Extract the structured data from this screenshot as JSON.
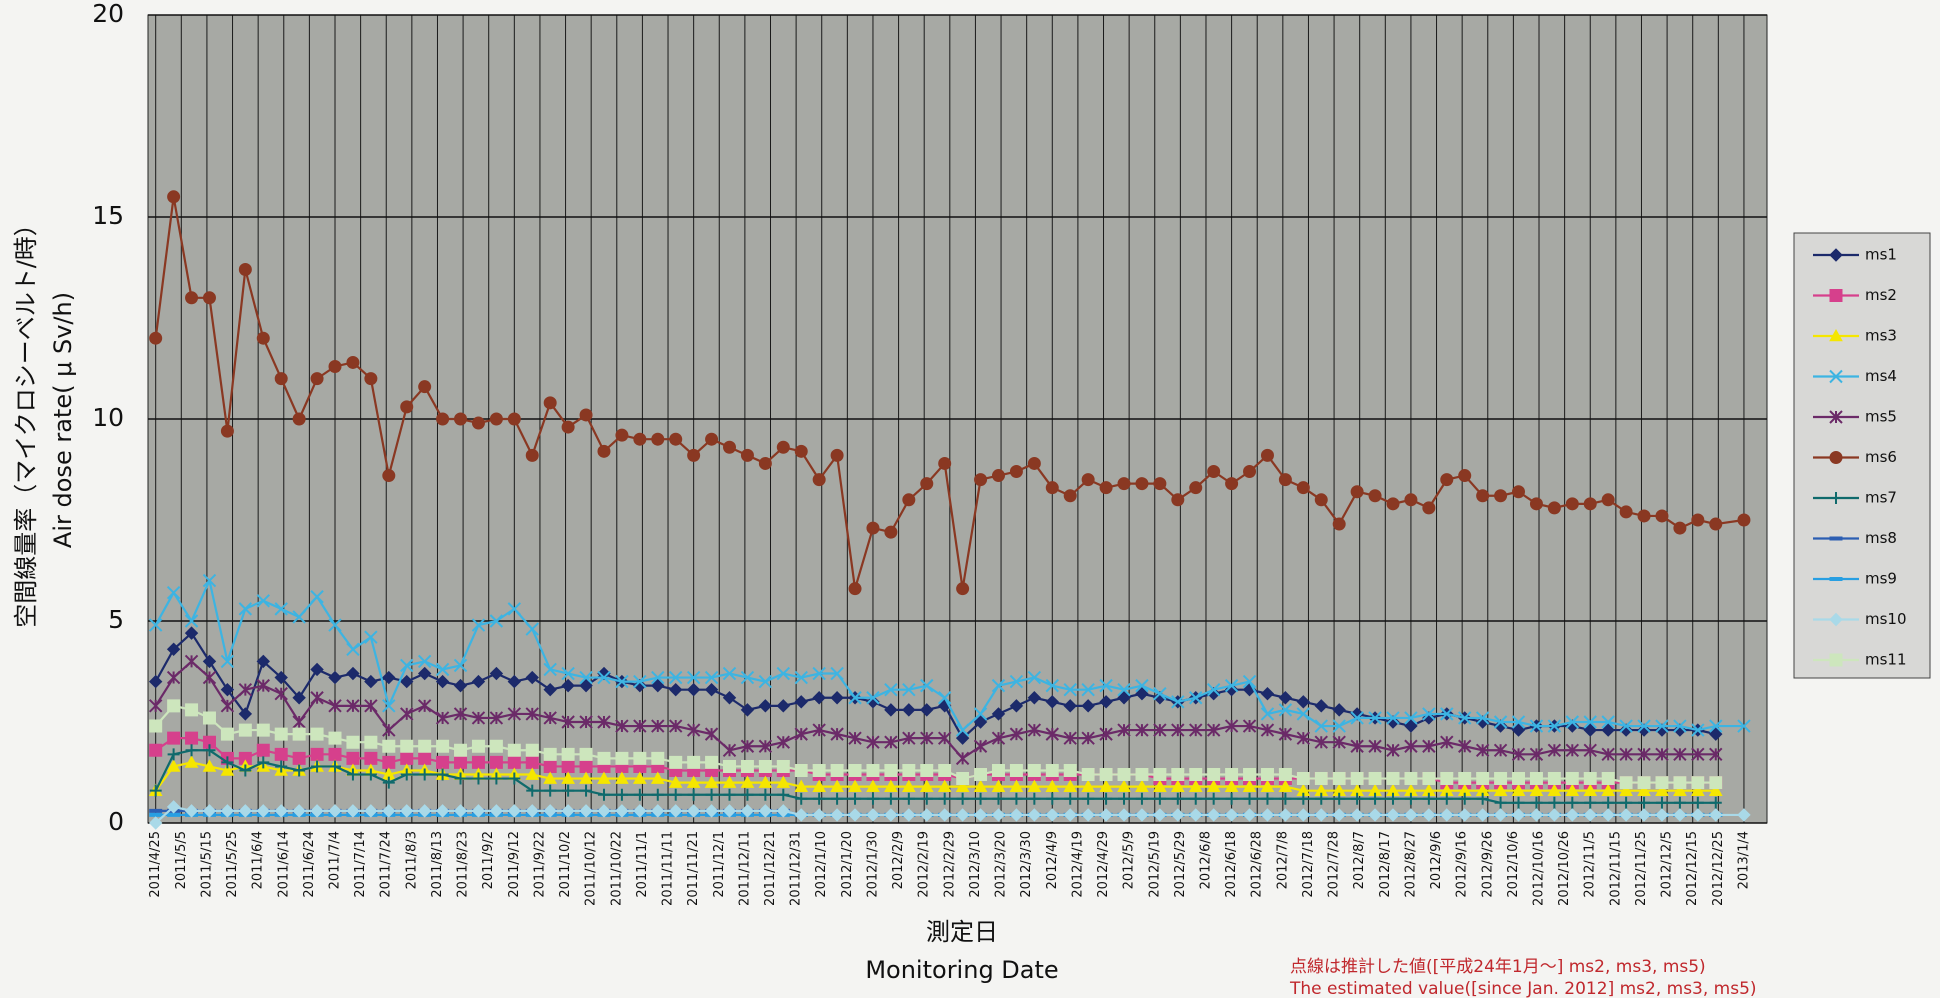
{
  "chart_data": {
    "type": "line",
    "ylabel": [
      "空間線量率（マイクロシーベルト/時）",
      "Air dose rate( μ Sv/h)"
    ],
    "xlabel": [
      "測定日",
      "Monitoring Date"
    ],
    "annotations": [
      "点線は推計した値([平成24年1月～] ms2, ms3, ms5)",
      "The estimated value([since Jan. 2012] ms2, ms3, ms5)"
    ],
    "ylim": [
      0,
      20
    ],
    "yticks": [
      0,
      5,
      10,
      15,
      20
    ],
    "xlim": [
      "2011/4/22",
      "2013/1/13"
    ],
    "xticks": [
      "2011/4/25",
      "2011/5/5",
      "2011/5/15",
      "2011/5/25",
      "2011/6/4",
      "2011/6/14",
      "2011/6/24",
      "2011/7/4",
      "2011/7/14",
      "2011/7/24",
      "2011/8/3",
      "2011/8/13",
      "2011/8/23",
      "2011/9/2",
      "2011/9/12",
      "2011/9/22",
      "2011/10/2",
      "2011/10/12",
      "2011/10/22",
      "2011/11/1",
      "2011/11/11",
      "2011/11/21",
      "2011/12/1",
      "2011/12/11",
      "2011/12/21",
      "2011/12/31",
      "2012/1/10",
      "2012/1/20",
      "2012/1/30",
      "2012/2/9",
      "2012/2/19",
      "2012/2/29",
      "2012/3/10",
      "2012/3/20",
      "2012/3/30",
      "2012/4/9",
      "2012/4/19",
      "2012/4/29",
      "2012/5/9",
      "2012/5/19",
      "2012/5/29",
      "2012/6/8",
      "2012/6/18",
      "2012/6/28",
      "2012/7/8",
      "2012/7/18",
      "2012/7/28",
      "2012/8/7",
      "2012/8/17",
      "2012/8/27",
      "2012/9/6",
      "2012/9/16",
      "2012/9/26",
      "2012/10/6",
      "2012/10/16",
      "2012/10/26",
      "2012/11/5",
      "2012/11/15",
      "2012/11/25",
      "2012/12/5",
      "2012/12/15",
      "2012/12/25",
      "2013/1/4"
    ],
    "grid": true,
    "legend": "right",
    "background": "#a7a9a4",
    "x": [
      "2011/4/25",
      "2011/5/2",
      "2011/5/9",
      "2011/5/16",
      "2011/5/23",
      "2011/5/30",
      "2011/6/6",
      "2011/6/13",
      "2011/6/20",
      "2011/6/27",
      "2011/7/4",
      "2011/7/11",
      "2011/7/18",
      "2011/7/25",
      "2011/8/1",
      "2011/8/8",
      "2011/8/15",
      "2011/8/22",
      "2011/8/29",
      "2011/9/5",
      "2011/9/12",
      "2011/9/19",
      "2011/9/26",
      "2011/10/3",
      "2011/10/10",
      "2011/10/17",
      "2011/10/24",
      "2011/10/31",
      "2011/11/7",
      "2011/11/14",
      "2011/11/21",
      "2011/11/28",
      "2011/12/5",
      "2011/12/12",
      "2011/12/19",
      "2011/12/26",
      "2012/1/2",
      "2012/1/9",
      "2012/1/16",
      "2012/1/23",
      "2012/1/30",
      "2012/2/6",
      "2012/2/13",
      "2012/2/20",
      "2012/2/27",
      "2012/3/5",
      "2012/3/12",
      "2012/3/19",
      "2012/3/26",
      "2012/4/2",
      "2012/4/9",
      "2012/4/16",
      "2012/4/23",
      "2012/4/30",
      "2012/5/7",
      "2012/5/14",
      "2012/5/21",
      "2012/5/28",
      "2012/6/4",
      "2012/6/11",
      "2012/6/18",
      "2012/6/25",
      "2012/7/2",
      "2012/7/9",
      "2012/7/16",
      "2012/7/23",
      "2012/7/30",
      "2012/8/6",
      "2012/8/13",
      "2012/8/20",
      "2012/8/27",
      "2012/9/3",
      "2012/9/10",
      "2012/9/17",
      "2012/9/24",
      "2012/10/1",
      "2012/10/8",
      "2012/10/15",
      "2012/10/22",
      "2012/10/29",
      "2012/11/5",
      "2012/11/12",
      "2012/11/19",
      "2012/11/26",
      "2012/12/3",
      "2012/12/10",
      "2012/12/17",
      "2012/12/24",
      "2013/1/4"
    ],
    "series": [
      {
        "name": "ms1",
        "color": "#1c2a6b",
        "marker": "diamond",
        "values": [
          3.5,
          4.3,
          4.7,
          4.0,
          3.3,
          2.7,
          4.0,
          3.6,
          3.1,
          3.8,
          3.6,
          3.7,
          3.5,
          3.6,
          3.5,
          3.7,
          3.5,
          3.4,
          3.5,
          3.7,
          3.5,
          3.6,
          3.3,
          3.4,
          3.4,
          3.7,
          3.5,
          3.4,
          3.4,
          3.3,
          3.3,
          3.3,
          3.1,
          2.8,
          2.9,
          2.9,
          3.0,
          3.1,
          3.1,
          3.1,
          3.0,
          2.8,
          2.8,
          2.8,
          2.9,
          2.1,
          2.5,
          2.7,
          2.9,
          3.1,
          3.0,
          2.9,
          2.9,
          3.0,
          3.1,
          3.2,
          3.1,
          3.0,
          3.1,
          3.2,
          3.3,
          3.3,
          3.2,
          3.1,
          3.0,
          2.9,
          2.8,
          2.7,
          2.6,
          2.5,
          2.4,
          2.6,
          2.7,
          2.6,
          2.5,
          2.4,
          2.3,
          2.4,
          2.4,
          2.4,
          2.3,
          2.3,
          2.3,
          2.3,
          2.3,
          2.3,
          2.3,
          2.2,
          null
        ]
      },
      {
        "name": "ms2",
        "color": "#d6408c",
        "marker": "square",
        "values": [
          1.8,
          2.1,
          2.1,
          2.0,
          1.6,
          1.6,
          1.8,
          1.7,
          1.6,
          1.7,
          1.7,
          1.6,
          1.6,
          1.5,
          1.6,
          1.6,
          1.5,
          1.5,
          1.5,
          1.5,
          1.5,
          1.5,
          1.4,
          1.4,
          1.4,
          1.4,
          1.4,
          1.4,
          1.4,
          1.3,
          1.3,
          1.3,
          1.3,
          1.3,
          1.3,
          1.3,
          1.3,
          1.2,
          1.2,
          1.2,
          1.2,
          1.2,
          1.2,
          1.2,
          1.2,
          1.1,
          1.2,
          1.2,
          1.2,
          1.2,
          1.2,
          1.2,
          1.2,
          1.2,
          1.2,
          1.2,
          1.1,
          1.1,
          1.1,
          1.1,
          1.1,
          1.1,
          1.1,
          1.1,
          1.1,
          1.1,
          1.1,
          1.1,
          1.1,
          1.1,
          1.1,
          1.1,
          1.0,
          1.0,
          1.0,
          1.0,
          1.0,
          1.0,
          1.0,
          1.0,
          1.0,
          1.0,
          1.0,
          1.0,
          1.0,
          1.0,
          1.0,
          1.0,
          null
        ]
      },
      {
        "name": "ms3",
        "color": "#f5e600",
        "marker": "triangle",
        "values": [
          0.8,
          1.4,
          1.5,
          1.4,
          1.3,
          1.4,
          1.4,
          1.3,
          1.3,
          1.4,
          1.4,
          1.3,
          1.3,
          1.2,
          1.3,
          1.3,
          1.2,
          1.2,
          1.2,
          1.2,
          1.2,
          1.2,
          1.1,
          1.1,
          1.1,
          1.1,
          1.1,
          1.1,
          1.1,
          1.0,
          1.0,
          1.0,
          1.0,
          1.0,
          1.0,
          1.0,
          0.9,
          0.9,
          0.9,
          0.9,
          0.9,
          0.9,
          0.9,
          0.9,
          0.9,
          0.9,
          0.9,
          0.9,
          0.9,
          0.9,
          0.9,
          0.9,
          0.9,
          0.9,
          0.9,
          0.9,
          0.9,
          0.9,
          0.9,
          0.9,
          0.9,
          0.9,
          0.9,
          0.9,
          0.8,
          0.8,
          0.8,
          0.8,
          0.8,
          0.8,
          0.8,
          0.8,
          0.8,
          0.8,
          0.8,
          0.8,
          0.8,
          0.8,
          0.8,
          0.8,
          0.8,
          0.8,
          0.8,
          0.8,
          0.8,
          0.8,
          0.8,
          0.8,
          null
        ]
      },
      {
        "name": "ms4",
        "color": "#3db4e2",
        "marker": "x",
        "values": [
          4.9,
          5.7,
          5.0,
          6.0,
          4.0,
          5.3,
          5.5,
          5.3,
          5.1,
          5.6,
          4.9,
          4.3,
          4.6,
          2.9,
          3.9,
          4.0,
          3.8,
          3.9,
          4.9,
          5.0,
          5.3,
          4.8,
          3.8,
          3.7,
          3.6,
          3.6,
          3.5,
          3.5,
          3.6,
          3.6,
          3.6,
          3.6,
          3.7,
          3.6,
          3.5,
          3.7,
          3.6,
          3.7,
          3.7,
          3.1,
          3.1,
          3.3,
          3.3,
          3.4,
          3.1,
          2.3,
          2.7,
          3.4,
          3.5,
          3.6,
          3.4,
          3.3,
          3.3,
          3.4,
          3.3,
          3.4,
          3.2,
          3.0,
          3.1,
          3.3,
          3.4,
          3.5,
          2.7,
          2.8,
          2.7,
          2.4,
          2.4,
          2.6,
          2.6,
          2.6,
          2.6,
          2.7,
          2.7,
          2.6,
          2.6,
          2.5,
          2.5,
          2.4,
          2.4,
          2.5,
          2.5,
          2.5,
          2.4,
          2.4,
          2.4,
          2.4,
          2.3,
          2.4,
          2.4
        ]
      },
      {
        "name": "ms5",
        "color": "#6b2a68",
        "marker": "star",
        "values": [
          2.9,
          3.6,
          4.0,
          3.6,
          2.9,
          3.3,
          3.4,
          3.2,
          2.5,
          3.1,
          2.9,
          2.9,
          2.9,
          2.3,
          2.7,
          2.9,
          2.6,
          2.7,
          2.6,
          2.6,
          2.7,
          2.7,
          2.6,
          2.5,
          2.5,
          2.5,
          2.4,
          2.4,
          2.4,
          2.4,
          2.3,
          2.2,
          1.8,
          1.9,
          1.9,
          2.0,
          2.2,
          2.3,
          2.2,
          2.1,
          2.0,
          2.0,
          2.1,
          2.1,
          2.1,
          1.6,
          1.9,
          2.1,
          2.2,
          2.3,
          2.2,
          2.1,
          2.1,
          2.2,
          2.3,
          2.3,
          2.3,
          2.3,
          2.3,
          2.3,
          2.4,
          2.4,
          2.3,
          2.2,
          2.1,
          2.0,
          2.0,
          1.9,
          1.9,
          1.8,
          1.9,
          1.9,
          2.0,
          1.9,
          1.8,
          1.8,
          1.7,
          1.7,
          1.8,
          1.8,
          1.8,
          1.7,
          1.7,
          1.7,
          1.7,
          1.7,
          1.7,
          1.7,
          null
        ]
      },
      {
        "name": "ms6",
        "color": "#8a3822",
        "marker": "circle",
        "values": [
          12.0,
          15.5,
          13.0,
          13.0,
          9.7,
          13.7,
          12.0,
          11.0,
          10.0,
          11.0,
          11.3,
          11.4,
          11.0,
          8.6,
          10.3,
          10.8,
          10.0,
          10.0,
          9.9,
          10.0,
          10.0,
          9.1,
          10.4,
          9.8,
          10.1,
          9.2,
          9.6,
          9.5,
          9.5,
          9.5,
          9.1,
          9.5,
          9.3,
          9.1,
          8.9,
          9.3,
          9.2,
          8.5,
          9.1,
          5.8,
          7.3,
          7.2,
          8.0,
          8.4,
          8.9,
          5.8,
          8.5,
          8.6,
          8.7,
          8.9,
          8.3,
          8.1,
          8.5,
          8.3,
          8.4,
          8.4,
          8.4,
          8.0,
          8.3,
          8.7,
          8.4,
          8.7,
          9.1,
          8.5,
          8.3,
          8.0,
          7.4,
          8.2,
          8.1,
          7.9,
          8.0,
          7.8,
          8.5,
          8.6,
          8.1,
          8.1,
          8.2,
          7.9,
          7.8,
          7.9,
          7.9,
          8.0,
          7.7,
          7.6,
          7.6,
          7.3,
          7.5,
          7.4,
          7.5
        ]
      },
      {
        "name": "ms7",
        "color": "#0f6a6c",
        "marker": "plus",
        "values": [
          0.8,
          1.7,
          1.8,
          1.8,
          1.5,
          1.3,
          1.5,
          1.4,
          1.3,
          1.4,
          1.4,
          1.2,
          1.2,
          1.0,
          1.2,
          1.2,
          1.2,
          1.1,
          1.1,
          1.1,
          1.1,
          0.8,
          0.8,
          0.8,
          0.8,
          0.7,
          0.7,
          0.7,
          0.7,
          0.7,
          0.7,
          0.7,
          0.7,
          0.7,
          0.7,
          0.7,
          0.6,
          0.6,
          0.6,
          0.6,
          0.6,
          0.6,
          0.6,
          0.6,
          0.6,
          0.6,
          0.6,
          0.6,
          0.6,
          0.6,
          0.6,
          0.6,
          0.6,
          0.6,
          0.6,
          0.6,
          0.6,
          0.6,
          0.6,
          0.6,
          0.6,
          0.6,
          0.6,
          0.6,
          0.6,
          0.6,
          0.6,
          0.6,
          0.6,
          0.6,
          0.6,
          0.6,
          0.6,
          0.6,
          0.6,
          0.5,
          0.5,
          0.5,
          0.5,
          0.5,
          0.5,
          0.5,
          0.5,
          0.5,
          0.5,
          0.5,
          0.5,
          0.5,
          null
        ]
      },
      {
        "name": "ms8",
        "color": "#2c5eb2",
        "marker": "dash",
        "values": [
          0.3,
          0.3,
          0.3,
          0.3,
          0.3,
          0.3,
          0.3,
          0.3,
          0.3,
          0.3,
          0.3,
          0.3,
          0.3,
          0.3,
          0.3,
          0.3,
          0.3,
          0.3,
          0.3,
          0.3,
          0.3,
          0.3,
          0.3,
          0.3,
          0.3,
          0.3,
          0.3,
          0.3,
          0.3,
          0.3,
          0.3,
          0.3,
          0.3,
          0.3,
          0.3,
          0.3,
          0.2,
          0.2,
          0.2,
          0.2,
          0.2,
          0.2,
          0.2,
          0.2,
          0.2,
          0.2,
          0.2,
          0.2,
          0.2,
          0.2,
          0.2,
          0.2,
          0.2,
          0.2,
          0.2,
          0.2,
          0.2,
          0.2,
          0.2,
          0.2,
          0.2,
          0.2,
          0.2,
          0.2,
          0.2,
          0.2,
          0.2,
          0.2,
          0.2,
          0.2,
          0.2,
          0.2,
          0.2,
          0.2,
          0.2,
          0.2,
          0.2,
          0.2,
          0.2,
          0.2,
          0.2,
          0.2,
          0.2,
          0.2,
          0.2,
          0.2,
          0.2,
          0.2,
          null
        ]
      },
      {
        "name": "ms9",
        "color": "#289fe2",
        "marker": "dash",
        "values": [
          0.2,
          0.2,
          0.2,
          0.2,
          0.2,
          0.2,
          0.2,
          0.2,
          0.2,
          0.2,
          0.2,
          0.2,
          0.2,
          0.2,
          0.2,
          0.2,
          0.2,
          0.2,
          0.2,
          0.2,
          0.2,
          0.2,
          0.2,
          0.2,
          0.2,
          0.2,
          0.2,
          0.2,
          0.2,
          0.2,
          0.2,
          0.2,
          0.2,
          0.2,
          0.2,
          0.2,
          0.2,
          0.2,
          0.2,
          0.2,
          0.2,
          0.2,
          0.2,
          0.2,
          0.2,
          0.2,
          0.2,
          0.2,
          0.2,
          0.2,
          0.2,
          0.2,
          0.2,
          0.2,
          0.2,
          0.2,
          0.2,
          0.2,
          0.2,
          0.2,
          0.2,
          0.2,
          0.2,
          0.2,
          0.2,
          0.2,
          0.2,
          0.2,
          0.2,
          0.2,
          0.2,
          0.2,
          0.2,
          0.2,
          0.2,
          0.2,
          0.2,
          0.2,
          0.2,
          0.2,
          0.2,
          0.2,
          0.2,
          0.2,
          0.2,
          0.2,
          0.2,
          0.2,
          null
        ]
      },
      {
        "name": "ms10",
        "color": "#a9d9e8",
        "marker": "diamond",
        "values": [
          0.0,
          0.4,
          0.3,
          0.3,
          0.3,
          0.3,
          0.3,
          0.3,
          0.3,
          0.3,
          0.3,
          0.3,
          0.3,
          0.3,
          0.3,
          0.3,
          0.3,
          0.3,
          0.3,
          0.3,
          0.3,
          0.3,
          0.3,
          0.3,
          0.3,
          0.3,
          0.3,
          0.3,
          0.3,
          0.3,
          0.3,
          0.3,
          0.3,
          0.3,
          0.3,
          0.3,
          0.2,
          0.2,
          0.2,
          0.2,
          0.2,
          0.2,
          0.2,
          0.2,
          0.2,
          0.2,
          0.2,
          0.2,
          0.2,
          0.2,
          0.2,
          0.2,
          0.2,
          0.2,
          0.2,
          0.2,
          0.2,
          0.2,
          0.2,
          0.2,
          0.2,
          0.2,
          0.2,
          0.2,
          0.2,
          0.2,
          0.2,
          0.2,
          0.2,
          0.2,
          0.2,
          0.2,
          0.2,
          0.2,
          0.2,
          0.2,
          0.2,
          0.2,
          0.2,
          0.2,
          0.2,
          0.2,
          0.2,
          0.2,
          0.2,
          0.2,
          0.2,
          0.2,
          0.2
        ]
      },
      {
        "name": "ms11",
        "color": "#cde6bd",
        "marker": "square",
        "values": [
          2.4,
          2.9,
          2.8,
          2.6,
          2.2,
          2.3,
          2.3,
          2.2,
          2.2,
          2.2,
          2.1,
          2.0,
          2.0,
          1.9,
          1.9,
          1.9,
          1.9,
          1.8,
          1.9,
          1.9,
          1.8,
          1.8,
          1.7,
          1.7,
          1.7,
          1.6,
          1.6,
          1.6,
          1.6,
          1.5,
          1.5,
          1.5,
          1.4,
          1.4,
          1.4,
          1.4,
          1.3,
          1.3,
          1.3,
          1.3,
          1.3,
          1.3,
          1.3,
          1.3,
          1.3,
          1.1,
          1.2,
          1.3,
          1.3,
          1.3,
          1.3,
          1.3,
          1.2,
          1.2,
          1.2,
          1.2,
          1.2,
          1.2,
          1.2,
          1.2,
          1.2,
          1.2,
          1.2,
          1.2,
          1.1,
          1.1,
          1.1,
          1.1,
          1.1,
          1.1,
          1.1,
          1.1,
          1.1,
          1.1,
          1.1,
          1.1,
          1.1,
          1.1,
          1.1,
          1.1,
          1.1,
          1.1,
          1.0,
          1.0,
          1.0,
          1.0,
          1.0,
          1.0,
          null
        ]
      }
    ]
  }
}
